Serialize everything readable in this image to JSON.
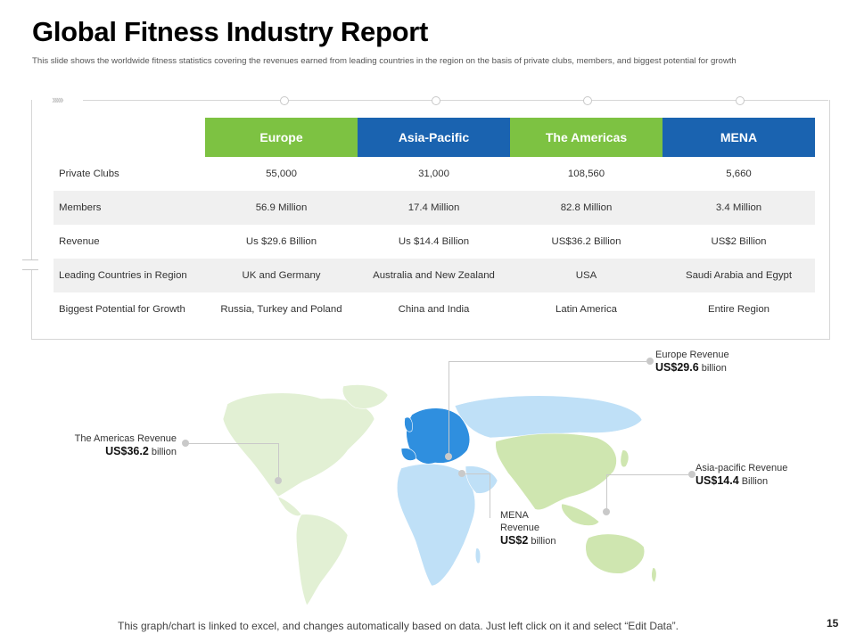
{
  "title": "Global Fitness Industry Report",
  "subtitle": "This slide shows the worldwide fitness statistics covering the revenues earned from leading countries in the region on the basis of  private clubs, members, and biggest potential for growth",
  "table": {
    "headers": [
      {
        "label": "Europe",
        "color": "#7dc242"
      },
      {
        "label": "Asia-Pacific",
        "color": "#1a63b0"
      },
      {
        "label": "The Americas",
        "color": "#7dc242"
      },
      {
        "label": "MENA",
        "color": "#1a63b0"
      }
    ],
    "rows": [
      {
        "label": "Private Clubs",
        "cells": [
          "55,000",
          "31,000",
          "108,560",
          "5,660"
        ]
      },
      {
        "label": "Members",
        "cells": [
          "56.9 Million",
          "17.4 Million",
          "82.8 Million",
          "3.4 Million"
        ]
      },
      {
        "label": "Revenue",
        "cells": [
          "Us $29.6 Billion",
          "Us $14.4 Billion",
          "US$36.2 Billion",
          "US$2 Billion"
        ]
      },
      {
        "label": "Leading Countries in Region",
        "cells": [
          "UK and Germany",
          "Australia and New Zealand",
          "USA",
          "Saudi Arabia and Egypt"
        ]
      },
      {
        "label": "Biggest Potential for Growth",
        "cells": [
          "Russia, Turkey and Poland",
          "China and India",
          "Latin America",
          "Entire Region"
        ]
      }
    ]
  },
  "callouts": {
    "europe": {
      "label": "Europe Revenue",
      "value": "US$29.6",
      "unit": "billion"
    },
    "americas": {
      "label": "The Americas Revenue",
      "value": "US$36.2",
      "unit": "billion"
    },
    "asia": {
      "label": "Asia-pacific Revenue",
      "value": "US$14.4",
      "unit": "Billion"
    },
    "mena": {
      "label_line1": "MENA",
      "label_line2": "Revenue",
      "value": "US$2",
      "unit": "billion"
    }
  },
  "map_colors": {
    "americas": "#e2f0d4",
    "europe": "#2f8fdf",
    "africa_asia": "#bfe0f7",
    "asia_pacific": "#cfe6b0"
  },
  "footer": "This graph/chart is linked to excel, and changes automatically based on data. Just left click on it and select “Edit Data”.",
  "page_number": "15"
}
